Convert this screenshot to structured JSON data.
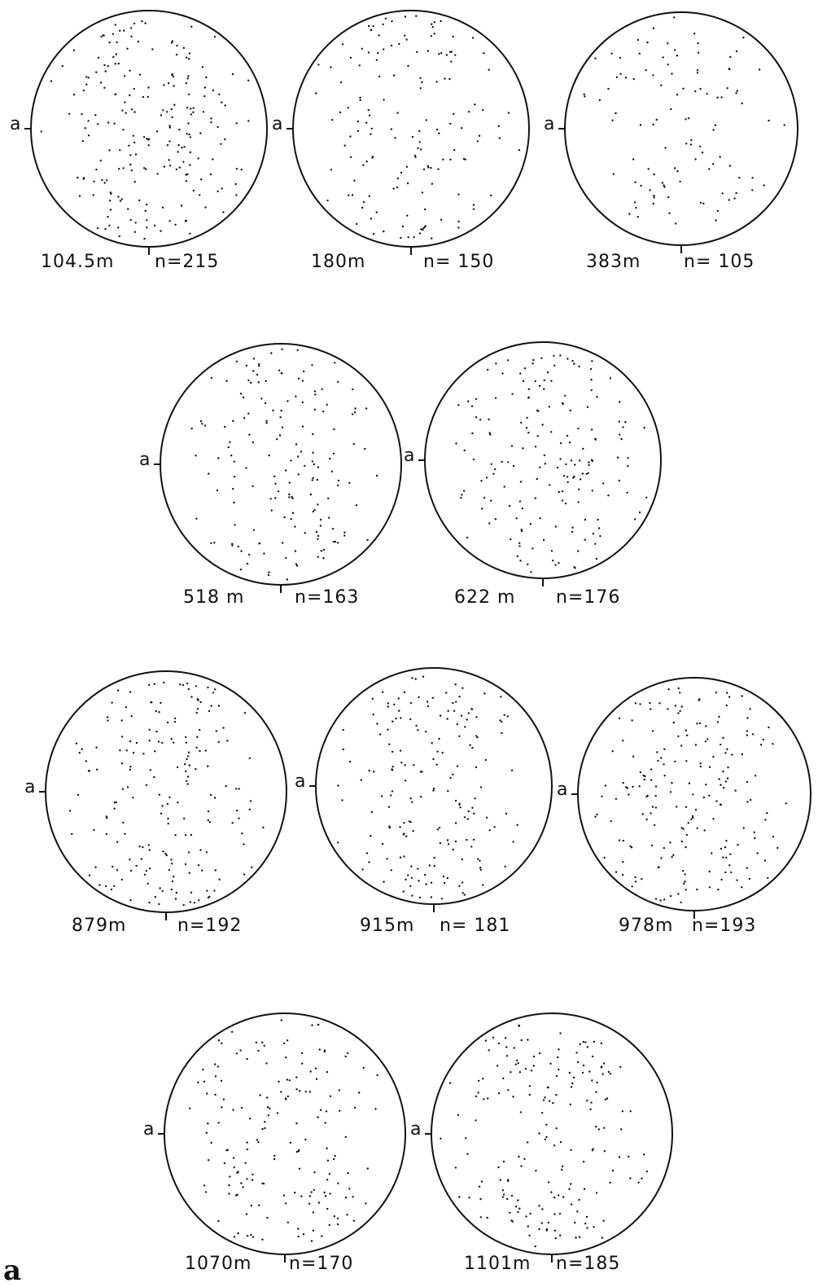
{
  "figure_letter": "a",
  "axis_marker": "a",
  "plots": [
    {
      "depth": "104.5m",
      "n": "n=215"
    },
    {
      "depth": "180m",
      "n": "n= 150"
    },
    {
      "depth": "383m",
      "n": "n= 105"
    },
    {
      "depth": "518 m",
      "n": "n=163"
    },
    {
      "depth": "622 m",
      "n": "n=176"
    },
    {
      "depth": "879m",
      "n": "n=192"
    },
    {
      "depth": "915m",
      "n": "n= 181"
    },
    {
      "depth": "978m",
      "n": "n=193"
    },
    {
      "depth": "1070m",
      "n": "n=170"
    },
    {
      "depth": "1101m",
      "n": "n=185"
    }
  ]
}
